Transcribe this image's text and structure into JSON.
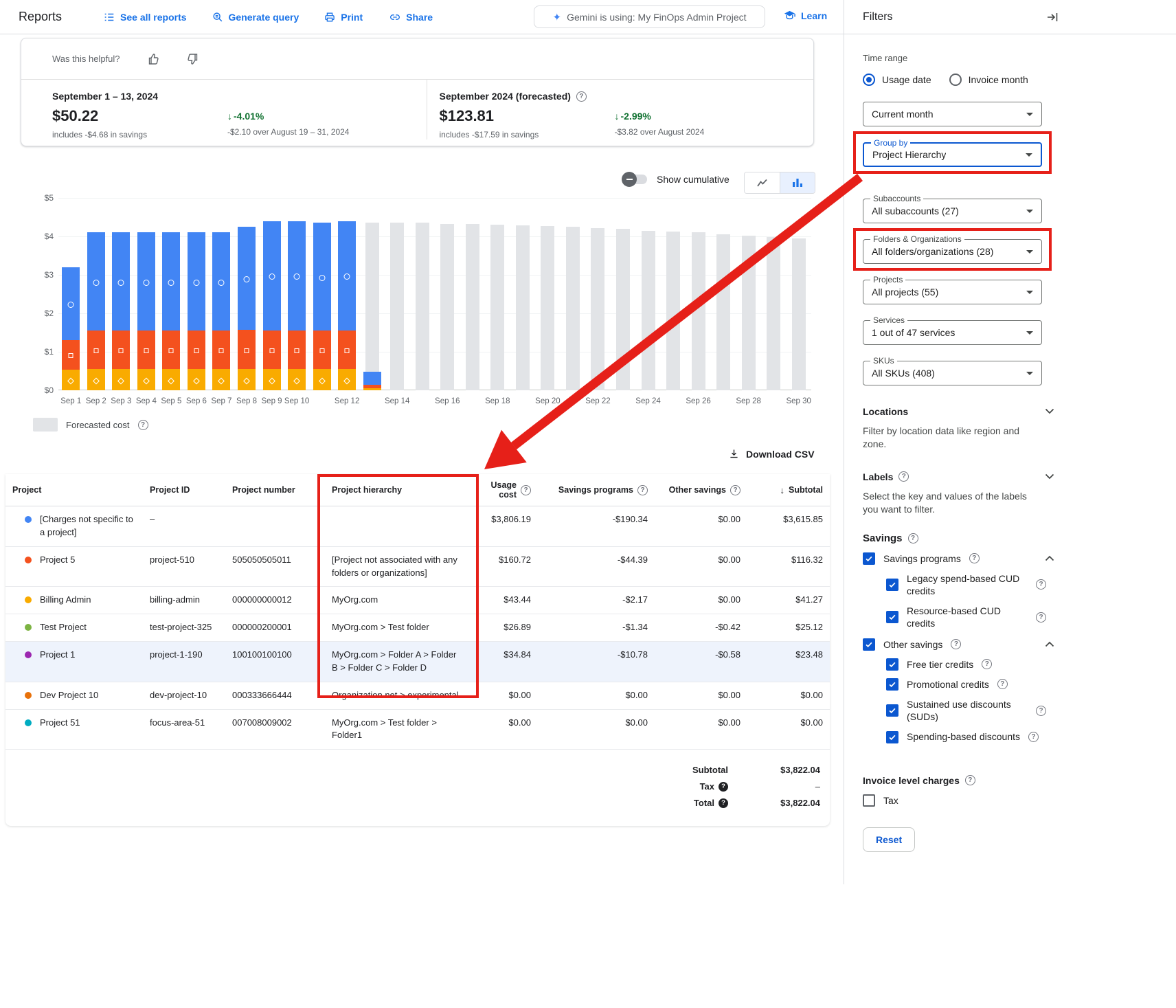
{
  "app": {
    "title": "Reports"
  },
  "topbar": {
    "see_all_reports": "See all reports",
    "generate_query": "Generate query",
    "print": "Print",
    "share": "Share",
    "gemini_chip": "Gemini is using: My FinOps Admin Project",
    "learn": "Learn"
  },
  "feedback": {
    "question": "Was this helpful?"
  },
  "summary": {
    "current": {
      "period": "September 1 – 13, 2024",
      "amount": "$50.22",
      "savings_note": "includes -$4.68 in savings",
      "delta_pct": "-4.01%",
      "delta_note": "-$2.10 over August 19 – 31, 2024"
    },
    "forecast": {
      "period": "September 2024 (forecasted)",
      "amount": "$123.81",
      "savings_note": "includes -$17.59 in savings",
      "delta_pct": "-2.99%",
      "delta_note": "-$3.82 over August 2024"
    }
  },
  "chart": {
    "show_cumulative": "Show cumulative",
    "legend_forecast": "Forecasted cost"
  },
  "chart_data": {
    "type": "bar",
    "subtype": "stacked-daily-cost-with-forecast",
    "ylim": [
      0,
      5
    ],
    "yticks": [
      "$0",
      "$1",
      "$2",
      "$3",
      "$4",
      "$5"
    ],
    "colors": {
      "blue": "#4285f4",
      "orange": "#f4511e",
      "yellow": "#f9ab00",
      "forecast": "#e2e4e7"
    },
    "series_legend": [
      {
        "key": "blue",
        "marker": "circle"
      },
      {
        "key": "orange",
        "marker": "square"
      },
      {
        "key": "yellow",
        "marker": "diamond"
      }
    ],
    "days": [
      {
        "label": "Sep 1",
        "show_label": true,
        "stack": {
          "yellow": 0.54,
          "orange": 0.76,
          "blue": 1.9
        }
      },
      {
        "label": "Sep 2",
        "show_label": true,
        "stack": {
          "yellow": 0.55,
          "orange": 1.0,
          "blue": 2.55
        }
      },
      {
        "label": "Sep 3",
        "show_label": true,
        "stack": {
          "yellow": 0.55,
          "orange": 1.0,
          "blue": 2.55
        }
      },
      {
        "label": "Sep 4",
        "show_label": true,
        "stack": {
          "yellow": 0.55,
          "orange": 1.0,
          "blue": 2.55
        }
      },
      {
        "label": "Sep 5",
        "show_label": true,
        "stack": {
          "yellow": 0.55,
          "orange": 1.0,
          "blue": 2.55
        }
      },
      {
        "label": "Sep 6",
        "show_label": true,
        "stack": {
          "yellow": 0.55,
          "orange": 1.0,
          "blue": 2.55
        }
      },
      {
        "label": "Sep 7",
        "show_label": true,
        "stack": {
          "yellow": 0.55,
          "orange": 1.0,
          "blue": 2.55
        }
      },
      {
        "label": "Sep 8",
        "show_label": true,
        "stack": {
          "yellow": 0.55,
          "orange": 1.02,
          "blue": 2.68
        }
      },
      {
        "label": "Sep 9",
        "show_label": true,
        "stack": {
          "yellow": 0.55,
          "orange": 1.0,
          "blue": 2.85
        }
      },
      {
        "label": "Sep 10",
        "show_label": true,
        "stack": {
          "yellow": 0.55,
          "orange": 1.0,
          "blue": 2.85
        }
      },
      {
        "label": "Sep 11",
        "show_label": false,
        "stack": {
          "yellow": 0.55,
          "orange": 1.0,
          "blue": 2.8
        }
      },
      {
        "label": "Sep 12",
        "show_label": true,
        "stack": {
          "yellow": 0.55,
          "orange": 1.0,
          "blue": 2.85
        }
      },
      {
        "label": "Sep 13",
        "show_label": false,
        "forecast": 4.35,
        "markers": false,
        "stack": {
          "yellow": 0.05,
          "orange": 0.1,
          "blue": 0.33
        }
      },
      {
        "label": "Sep 14",
        "show_label": true,
        "forecast": 4.35
      },
      {
        "label": "Sep 15",
        "show_label": false,
        "forecast": 4.35
      },
      {
        "label": "Sep 16",
        "show_label": true,
        "forecast": 4.33
      },
      {
        "label": "Sep 17",
        "show_label": false,
        "forecast": 4.32
      },
      {
        "label": "Sep 18",
        "show_label": true,
        "forecast": 4.3
      },
      {
        "label": "Sep 19",
        "show_label": false,
        "forecast": 4.28
      },
      {
        "label": "Sep 20",
        "show_label": true,
        "forecast": 4.27
      },
      {
        "label": "Sep 21",
        "show_label": false,
        "forecast": 4.25
      },
      {
        "label": "Sep 22",
        "show_label": true,
        "forecast": 4.22
      },
      {
        "label": "Sep 23",
        "show_label": false,
        "forecast": 4.2
      },
      {
        "label": "Sep 24",
        "show_label": true,
        "forecast": 4.15
      },
      {
        "label": "Sep 25",
        "show_label": false,
        "forecast": 4.12
      },
      {
        "label": "Sep 26",
        "show_label": true,
        "forecast": 4.1
      },
      {
        "label": "Sep 27",
        "show_label": false,
        "forecast": 4.05
      },
      {
        "label": "Sep 28",
        "show_label": true,
        "forecast": 4.02
      },
      {
        "label": "Sep 29",
        "show_label": false,
        "forecast": 3.98
      },
      {
        "label": "Sep 30",
        "show_label": true,
        "forecast": 3.95
      }
    ]
  },
  "table": {
    "download_csv": "Download CSV",
    "columns": [
      {
        "label": "Project"
      },
      {
        "label": "Project ID"
      },
      {
        "label": "Project number"
      },
      {
        "label": "Project hierarchy"
      },
      {
        "label": "Usage cost",
        "help": true,
        "align": "right"
      },
      {
        "label": "Savings programs",
        "help": true,
        "align": "right"
      },
      {
        "label": "Other savings",
        "help": true,
        "align": "right"
      },
      {
        "label": "Subtotal",
        "sort": true,
        "align": "right"
      }
    ],
    "rows": [
      {
        "color": "#4285f4",
        "project": "[Charges not specific to a project]",
        "id": "–",
        "number": "",
        "hierarchy": "",
        "usage": "$3,806.19",
        "savings": "-$190.34",
        "other": "$0.00",
        "subtotal": "$3,615.85"
      },
      {
        "color": "#f4511e",
        "project": "Project 5",
        "id": "project-510",
        "number": "505050505011",
        "hierarchy": "[Project not associated with any folders or organizations]",
        "usage": "$160.72",
        "savings": "-$44.39",
        "other": "$0.00",
        "subtotal": "$116.32"
      },
      {
        "color": "#f9ab00",
        "project": "Billing Admin",
        "id": "billing-admin",
        "number": "000000000012",
        "hierarchy": "MyOrg.com",
        "usage": "$43.44",
        "savings": "-$2.17",
        "other": "$0.00",
        "subtotal": "$41.27"
      },
      {
        "color": "#7cb342",
        "project": "Test Project",
        "id": "test-project-325",
        "number": "000000200001",
        "hierarchy": "MyOrg.com > Test folder",
        "usage": "$26.89",
        "savings": "-$1.34",
        "other": "-$0.42",
        "subtotal": "$25.12"
      },
      {
        "color": "#9c27b0",
        "project": "Project 1",
        "id": "project-1-190",
        "number": "100100100100",
        "hierarchy": "MyOrg.com > Folder A > Folder B > Folder C > Folder D",
        "usage": "$34.84",
        "savings": "-$10.78",
        "other": "-$0.58",
        "subtotal": "$23.48",
        "highlighted": true
      },
      {
        "color": "#e8710a",
        "project": "Dev Project 10",
        "id": "dev-project-10",
        "number": "000333666444",
        "hierarchy": "Organization.net > experimental",
        "usage": "$0.00",
        "savings": "$0.00",
        "other": "$0.00",
        "subtotal": "$0.00"
      },
      {
        "color": "#00acc1",
        "project": "Project 51",
        "id": "focus-area-51",
        "number": "007008009002",
        "hierarchy": "MyOrg.com > Test folder > Folder1",
        "usage": "$0.00",
        "savings": "$0.00",
        "other": "$0.00",
        "subtotal": "$0.00"
      }
    ],
    "footer": {
      "subtotal_label": "Subtotal",
      "subtotal_value": "$3,822.04",
      "tax_label": "Tax",
      "tax_value": "–",
      "total_label": "Total",
      "total_value": "$3,822.04"
    }
  },
  "filters": {
    "title": "Filters",
    "time_range_label": "Time range",
    "radios": [
      {
        "label": "Usage date",
        "selected": true
      },
      {
        "label": "Invoice month",
        "selected": false
      }
    ],
    "dropdowns": [
      {
        "key": "time-range",
        "label": "",
        "value": "Current month"
      },
      {
        "key": "group-by",
        "label": "Group by",
        "value": "Project Hierarchy",
        "focused": true,
        "highlight": true,
        "gap_after": true
      },
      {
        "key": "subaccounts",
        "label": "Subaccounts",
        "value": "All subaccounts (27)"
      },
      {
        "key": "folders-organizations",
        "label": "Folders & Organizations",
        "value": "All folders/organizations (28)",
        "highlight": true
      },
      {
        "key": "projects",
        "label": "Projects",
        "value": "All projects (55)"
      },
      {
        "key": "services",
        "label": "Services",
        "value": "1 out of 47 services"
      },
      {
        "key": "skus",
        "label": "SKUs",
        "value": "All SKUs (408)"
      }
    ],
    "locations": {
      "title": "Locations",
      "desc": "Filter by location data like region and zone."
    },
    "labels": {
      "title": "Labels",
      "desc": "Select the key and values of the labels you want to filter."
    },
    "savings": {
      "title": "Savings",
      "groups": [
        {
          "label": "Savings programs",
          "checked": true,
          "children": [
            {
              "label": "Legacy spend-based CUD credits",
              "checked": true
            },
            {
              "label": "Resource-based CUD credits",
              "checked": true
            }
          ]
        },
        {
          "label": "Other savings",
          "checked": true,
          "children": [
            {
              "label": "Free tier credits",
              "checked": true
            },
            {
              "label": "Promotional credits",
              "checked": true
            },
            {
              "label": "Sustained use discounts (SUDs)",
              "checked": true
            },
            {
              "label": "Spending-based discounts",
              "checked": true
            }
          ]
        }
      ]
    },
    "invoice_level_charges": "Invoice level charges",
    "tax_checkbox": "Tax",
    "reset": "Reset"
  },
  "annotations": {
    "color": "#e62019",
    "highlighted_elements": [
      "Group by dropdown",
      "Folders & Organizations dropdown",
      "Project hierarchy table column"
    ]
  }
}
